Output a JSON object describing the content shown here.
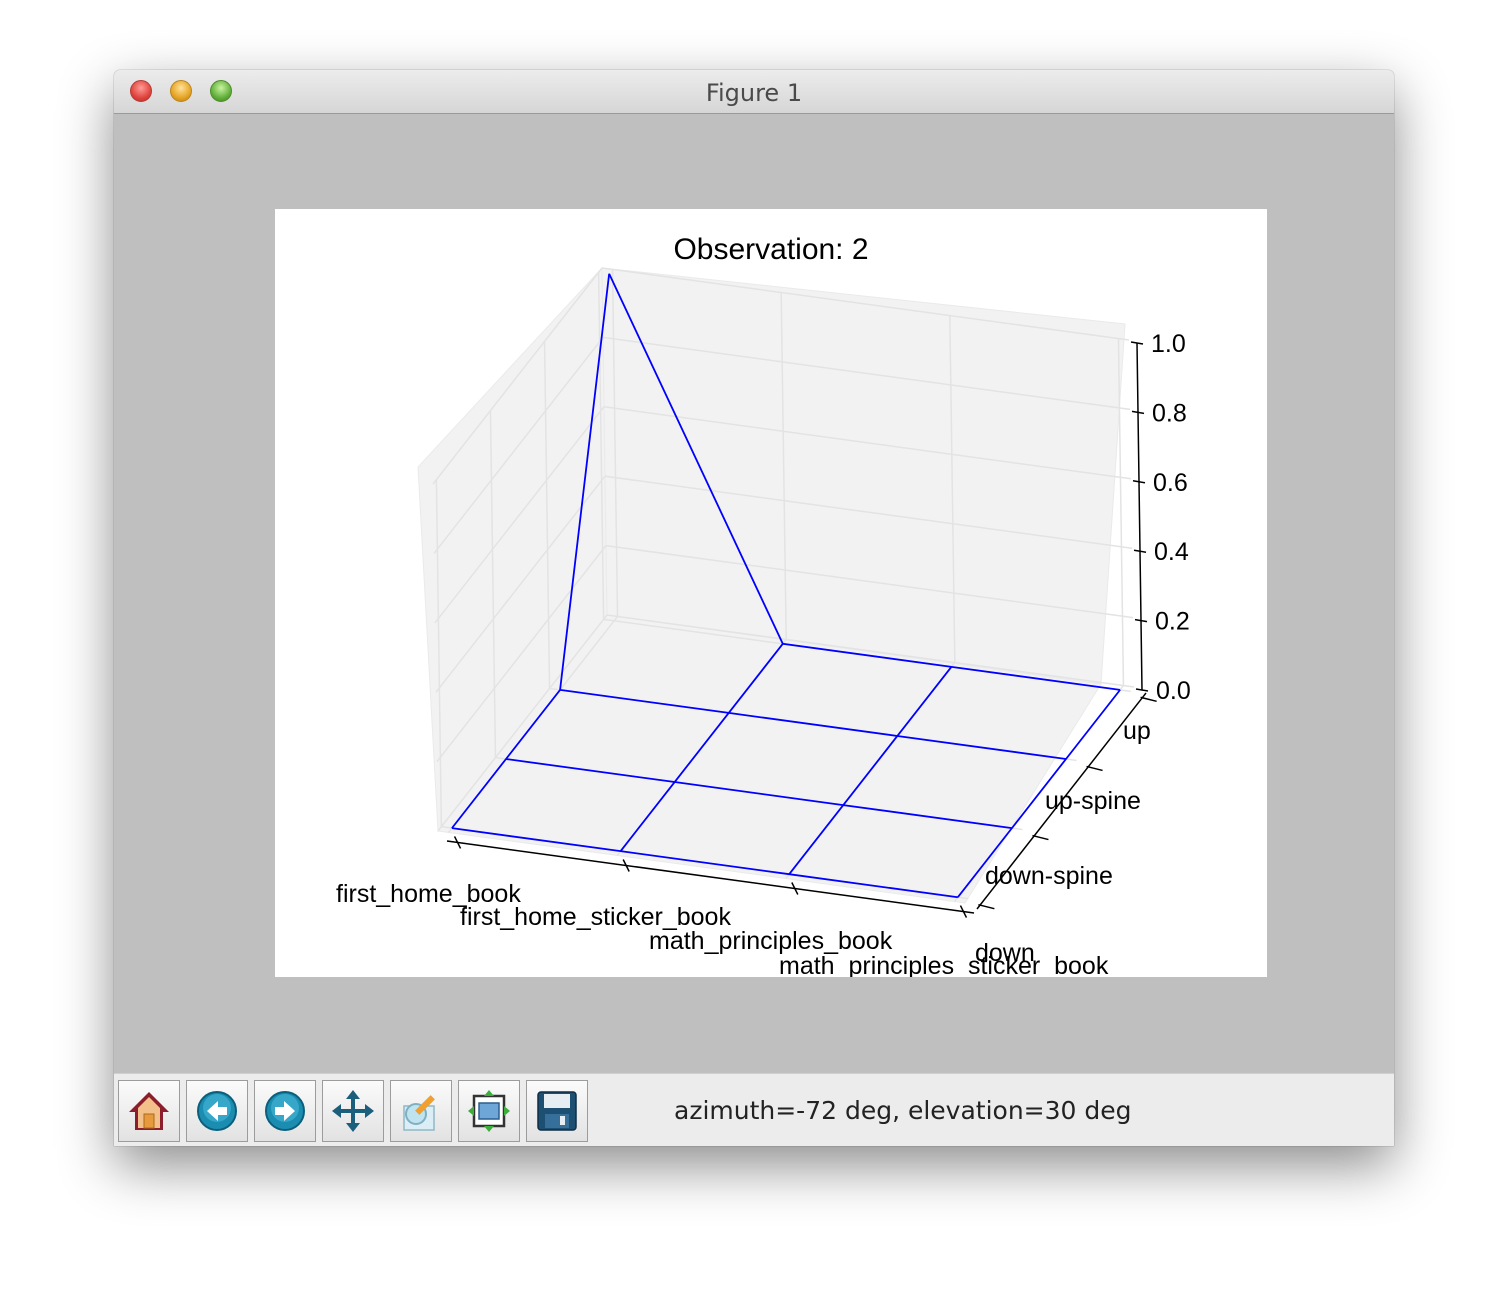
{
  "window": {
    "title": "Figure 1"
  },
  "toolbar": {
    "buttons": [
      {
        "id": "home",
        "icon": "home-icon"
      },
      {
        "id": "back",
        "icon": "back-arrow-icon"
      },
      {
        "id": "forward",
        "icon": "forward-arrow-icon"
      },
      {
        "id": "pan",
        "icon": "pan-move-icon"
      },
      {
        "id": "zoom",
        "icon": "zoom-rect-icon"
      },
      {
        "id": "subplots",
        "icon": "subplots-config-icon"
      },
      {
        "id": "save",
        "icon": "save-floppy-icon"
      }
    ],
    "status": "azimuth=-72 deg, elevation=30 deg"
  },
  "chart_data": {
    "type": "line",
    "projection": "3d",
    "title": "Observation: 2",
    "x_categories": [
      "first_home_book",
      "first_home_sticker_book",
      "math_principles_book",
      "math_principles_sticker_book"
    ],
    "y_categories": [
      "down",
      "down-spine",
      "up-spine",
      "up"
    ],
    "zlim": [
      0.0,
      1.0
    ],
    "z_ticks": [
      "0.0",
      "0.2",
      "0.4",
      "0.6",
      "0.8",
      "1.0"
    ],
    "z": [
      [
        0,
        0,
        0,
        0
      ],
      [
        0,
        0,
        0,
        0
      ],
      [
        0,
        0,
        0,
        0
      ],
      [
        1.0,
        0,
        0,
        0
      ]
    ],
    "z_note_rows_follow": "y_categories",
    "color": "#0000ff",
    "grid": true
  }
}
